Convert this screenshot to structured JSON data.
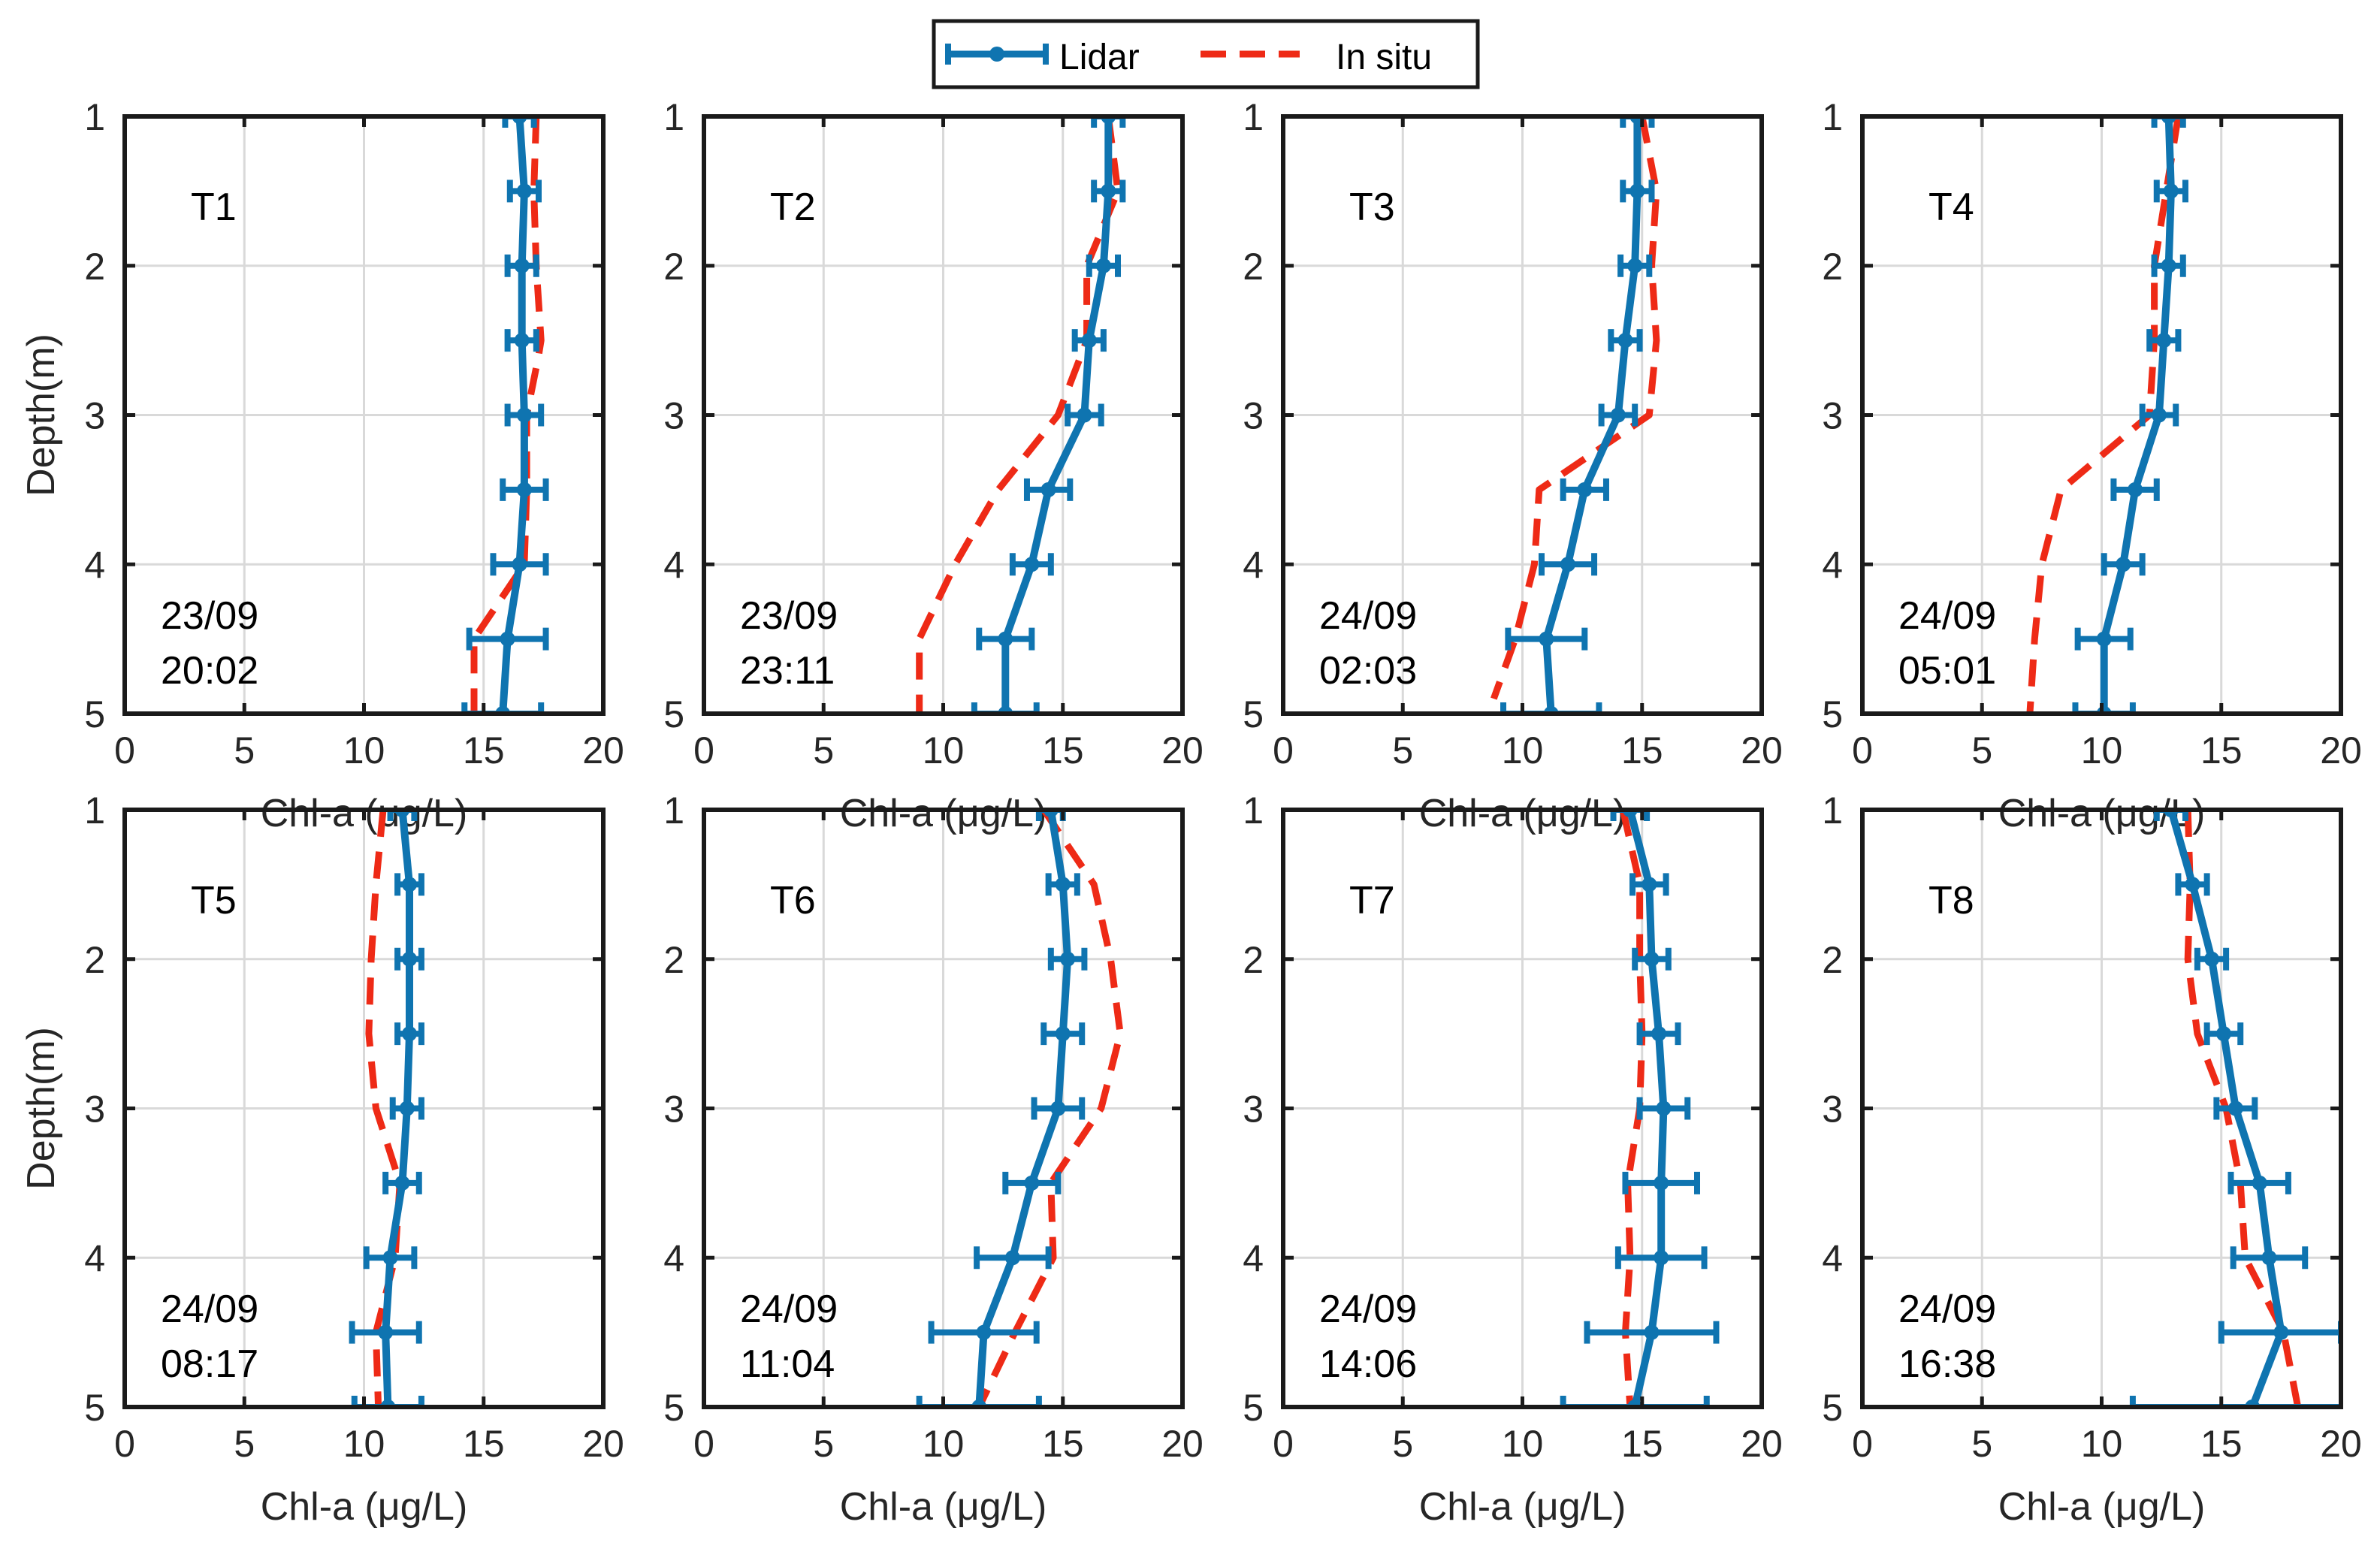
{
  "chart_data": {
    "type": "line",
    "legend": {
      "placement": "top-center",
      "entries": [
        {
          "name": "Lidar",
          "color": "#0f74b0",
          "style": "solid-with-errorbars"
        },
        {
          "name": "In situ",
          "color": "#ee2a16",
          "style": "dashed"
        }
      ]
    },
    "shared": {
      "xlabel": "Chl-a (μg/L)",
      "ylabel": "Depth(m)",
      "xlim": [
        0,
        20
      ],
      "ylim": [
        1,
        5
      ],
      "y_reversed": true,
      "xticks": [
        0,
        5,
        10,
        15,
        20
      ],
      "yticks": [
        1,
        2,
        3,
        4,
        5
      ],
      "grid": true,
      "depths": [
        1,
        1.5,
        2,
        2.5,
        3,
        3.5,
        4,
        4.5,
        5
      ]
    },
    "panels": [
      {
        "id": "T1",
        "date": "23/09",
        "time": "20:02",
        "lidar": [
          16.5,
          16.7,
          16.6,
          16.6,
          16.7,
          16.7,
          16.5,
          16.0,
          15.8
        ],
        "lidar_err": [
          0.6,
          0.6,
          0.6,
          0.6,
          0.7,
          0.9,
          1.1,
          1.6,
          1.6
        ],
        "insitu_depth": [
          1,
          1.5,
          2,
          2.5,
          2.6,
          3,
          3.5,
          4,
          4.5,
          5
        ],
        "insitu": [
          17.2,
          17.1,
          17.2,
          17.4,
          17.3,
          16.8,
          16.8,
          16.7,
          14.6,
          14.6
        ]
      },
      {
        "id": "T2",
        "date": "23/09",
        "time": "23:11",
        "lidar": [
          16.9,
          16.9,
          16.7,
          16.1,
          15.9,
          14.4,
          13.7,
          12.6,
          12.6
        ],
        "lidar_err": [
          0.6,
          0.6,
          0.6,
          0.6,
          0.7,
          0.9,
          0.8,
          1.1,
          1.3
        ],
        "insitu_depth": [
          1,
          1.5,
          2,
          2.5,
          3,
          3.5,
          4,
          4.5,
          5
        ],
        "insitu": [
          16.9,
          17.3,
          16.0,
          16.0,
          14.8,
          12.3,
          10.5,
          9.0,
          9.0
        ]
      },
      {
        "id": "T3",
        "date": "24/09",
        "time": "02:03",
        "lidar": [
          14.8,
          14.8,
          14.7,
          14.3,
          14.0,
          12.6,
          11.9,
          11.0,
          11.2
        ],
        "lidar_err": [
          0.6,
          0.6,
          0.6,
          0.6,
          0.7,
          0.9,
          1.1,
          1.6,
          2.0
        ],
        "insitu_depth": [
          1,
          1.5,
          2,
          2.5,
          3,
          3.5,
          4,
          4.5,
          4.9
        ],
        "insitu": [
          15.0,
          15.6,
          15.4,
          15.6,
          15.3,
          10.7,
          10.5,
          9.7,
          8.8
        ]
      },
      {
        "id": "T4",
        "date": "24/09",
        "time": "05:01",
        "lidar": [
          12.8,
          12.9,
          12.8,
          12.6,
          12.4,
          11.4,
          10.9,
          10.1,
          10.1
        ],
        "lidar_err": [
          0.6,
          0.6,
          0.6,
          0.6,
          0.7,
          0.9,
          0.8,
          1.1,
          1.2
        ],
        "insitu_depth": [
          1,
          1.5,
          2,
          2.5,
          3,
          3.5,
          4,
          4.5,
          5
        ],
        "insitu": [
          13.2,
          12.7,
          12.2,
          12.2,
          12.0,
          8.3,
          7.5,
          7.2,
          7.0
        ]
      },
      {
        "id": "T5",
        "date": "24/09",
        "time": "08:17",
        "lidar": [
          11.6,
          11.9,
          11.9,
          11.9,
          11.8,
          11.6,
          11.1,
          10.9,
          11.0
        ],
        "lidar_err": [
          0.5,
          0.5,
          0.5,
          0.5,
          0.6,
          0.7,
          1.0,
          1.4,
          1.4
        ],
        "insitu_depth": [
          1,
          1.5,
          2,
          2.5,
          3,
          3.5,
          4,
          4.5,
          5
        ],
        "insitu": [
          10.8,
          10.5,
          10.3,
          10.2,
          10.5,
          11.5,
          11.3,
          10.5,
          10.6
        ]
      },
      {
        "id": "T6",
        "date": "24/09",
        "time": "11:04",
        "lidar": [
          14.5,
          15.0,
          15.2,
          15.0,
          14.8,
          13.7,
          12.9,
          11.7,
          11.5
        ],
        "lidar_err": [
          0.5,
          0.6,
          0.7,
          0.8,
          1.0,
          1.1,
          1.5,
          2.2,
          2.5
        ],
        "insitu_depth": [
          1,
          1.5,
          2,
          2.5,
          3,
          3.5,
          4,
          4.5,
          5
        ],
        "insitu": [
          14.2,
          16.3,
          17.0,
          17.4,
          16.6,
          14.5,
          14.6,
          13.0,
          11.5
        ]
      },
      {
        "id": "T7",
        "date": "24/09",
        "time": "14:06",
        "lidar": [
          14.5,
          15.3,
          15.4,
          15.7,
          15.9,
          15.8,
          15.8,
          15.4,
          14.7
        ],
        "lidar_err": [
          0.7,
          0.7,
          0.7,
          0.8,
          1.0,
          1.5,
          1.8,
          2.7,
          3.0
        ],
        "insitu_depth": [
          1,
          1.5,
          2,
          2.5,
          3,
          3.5,
          4,
          4.5,
          5
        ],
        "insitu": [
          14.2,
          14.9,
          14.9,
          15.0,
          14.9,
          14.4,
          14.5,
          14.3,
          14.5
        ]
      },
      {
        "id": "T8",
        "date": "24/09",
        "time": "16:38",
        "lidar": [
          12.9,
          13.8,
          14.6,
          15.1,
          15.6,
          16.6,
          17.0,
          17.5,
          16.3
        ],
        "lidar_err": [
          0.6,
          0.6,
          0.6,
          0.7,
          0.8,
          1.2,
          1.5,
          2.5,
          5.0
        ],
        "insitu_depth": [
          1,
          1.5,
          2,
          2.5,
          3,
          3.5,
          4,
          4.5,
          5
        ],
        "insitu": [
          13.6,
          13.7,
          13.6,
          14.0,
          15.2,
          15.8,
          16.0,
          17.6,
          18.2
        ]
      }
    ]
  }
}
